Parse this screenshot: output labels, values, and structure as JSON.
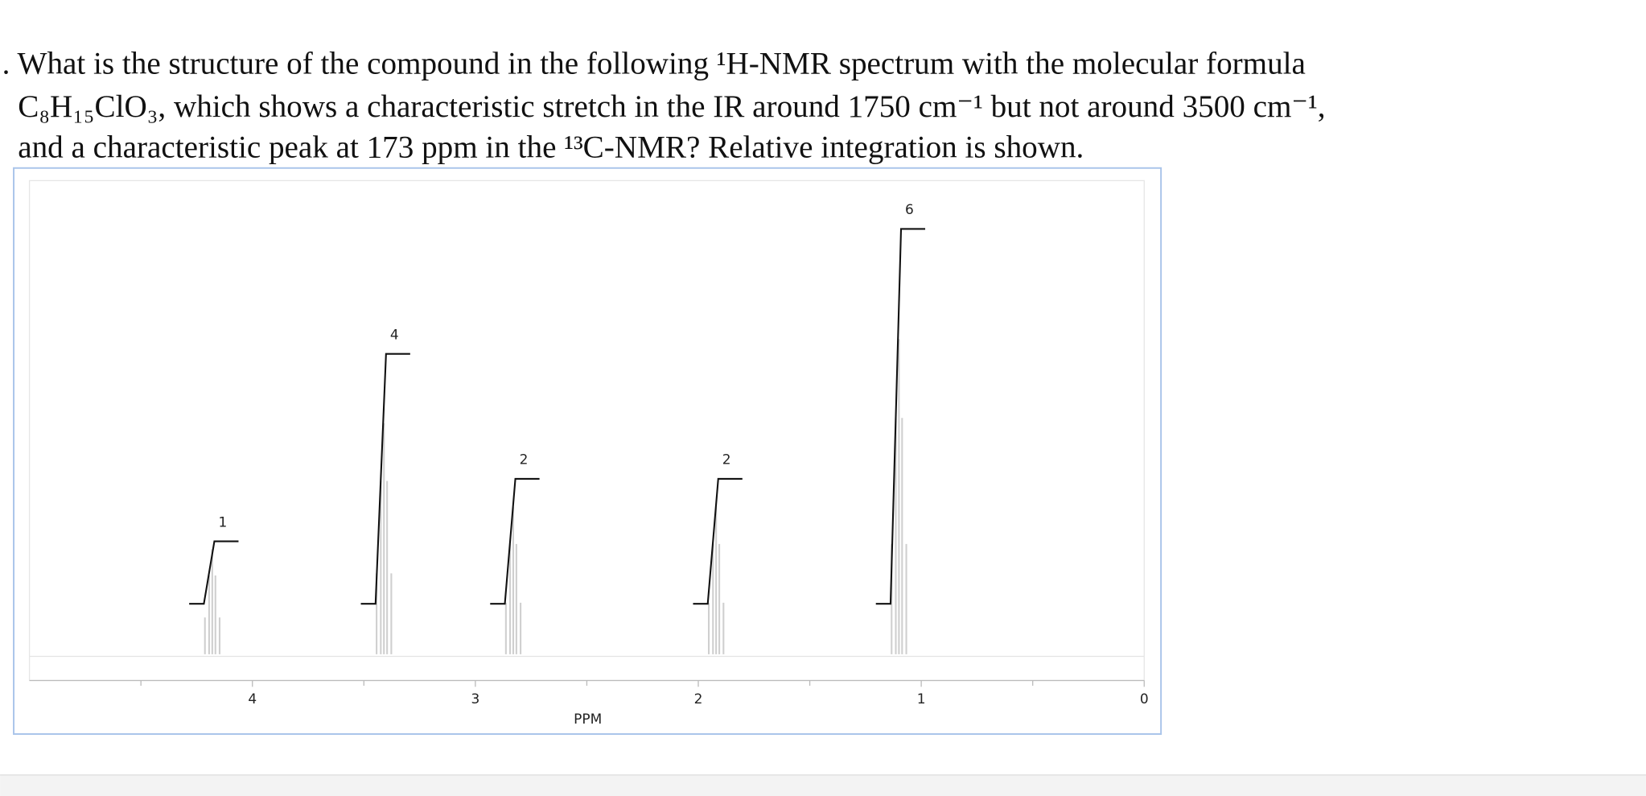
{
  "question": {
    "lines": [
      ". What is the structure of the compound in the following ¹H-NMR spectrum with the molecular formula",
      "C₈H₁₅ClO₃, which shows a characteristic stretch in the IR around 1750 cm⁻¹ but not around 3500 cm⁻¹,",
      "and a characteristic peak at 173 ppm in the ¹³C-NMR? Relative integration is shown."
    ]
  },
  "chart_data": {
    "type": "nmr",
    "x_label": "PPM",
    "xlim": [
      5,
      0
    ],
    "xticks": [
      4,
      3,
      2,
      1,
      0
    ],
    "xminorticks": [
      4.5,
      3.5,
      2.5,
      1.5,
      0.5
    ],
    "peaks": [
      {
        "ppm": 4.18,
        "integration": 1
      },
      {
        "ppm": 3.41,
        "integration": 4
      },
      {
        "ppm": 2.83,
        "integration": 2
      },
      {
        "ppm": 1.92,
        "integration": 2
      },
      {
        "ppm": 1.1,
        "integration": 6
      }
    ],
    "color": "#cfcfcf"
  }
}
